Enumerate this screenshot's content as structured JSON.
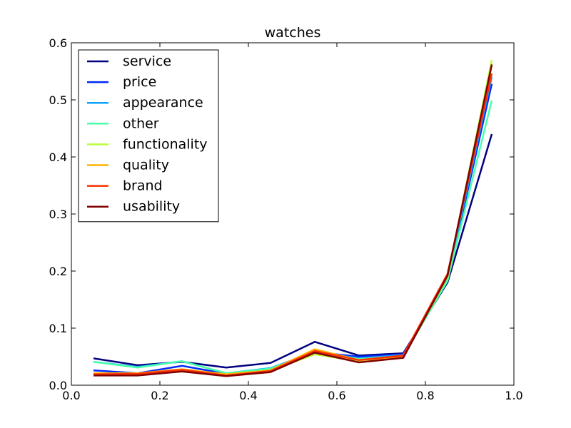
{
  "chart_data": {
    "type": "line",
    "title": "watches",
    "xlabel": "",
    "ylabel": "",
    "xlim": [
      0.0,
      1.0
    ],
    "ylim": [
      0.0,
      0.6
    ],
    "xticks": [
      "0.0",
      "0.2",
      "0.4",
      "0.6",
      "0.8",
      "1.0"
    ],
    "yticks": [
      "0.0",
      "0.1",
      "0.2",
      "0.3",
      "0.4",
      "0.5",
      "0.6"
    ],
    "grid": false,
    "legend_position": "top-left",
    "x": [
      0.05,
      0.15,
      0.25,
      0.35,
      0.45,
      0.55,
      0.65,
      0.75,
      0.85,
      0.95
    ],
    "series": [
      {
        "name": "service",
        "color": "#000080",
        "values": [
          0.047,
          0.035,
          0.041,
          0.031,
          0.039,
          0.076,
          0.052,
          0.056,
          0.18,
          0.44
        ]
      },
      {
        "name": "price",
        "color": "#0028ff",
        "values": [
          0.026,
          0.021,
          0.034,
          0.02,
          0.028,
          0.058,
          0.05,
          0.054,
          0.185,
          0.528
        ]
      },
      {
        "name": "appearance",
        "color": "#0fa4ff",
        "values": [
          0.041,
          0.032,
          0.042,
          0.021,
          0.03,
          0.058,
          0.047,
          0.053,
          0.188,
          0.54
        ]
      },
      {
        "name": "other",
        "color": "#48ffaa",
        "values": [
          0.041,
          0.031,
          0.042,
          0.021,
          0.029,
          0.057,
          0.046,
          0.051,
          0.183,
          0.499
        ]
      },
      {
        "name": "functionality",
        "color": "#bbff3a",
        "values": [
          0.019,
          0.018,
          0.027,
          0.019,
          0.026,
          0.054,
          0.042,
          0.049,
          0.19,
          0.57
        ]
      },
      {
        "name": "quality",
        "color": "#ffb300",
        "values": [
          0.021,
          0.021,
          0.028,
          0.019,
          0.026,
          0.063,
          0.044,
          0.049,
          0.192,
          0.56
        ]
      },
      {
        "name": "brand",
        "color": "#ff3000",
        "values": [
          0.019,
          0.02,
          0.027,
          0.017,
          0.025,
          0.06,
          0.044,
          0.052,
          0.195,
          0.546
        ]
      },
      {
        "name": "usability",
        "color": "#800000",
        "values": [
          0.017,
          0.017,
          0.024,
          0.016,
          0.023,
          0.057,
          0.04,
          0.048,
          0.192,
          0.562
        ]
      }
    ]
  }
}
